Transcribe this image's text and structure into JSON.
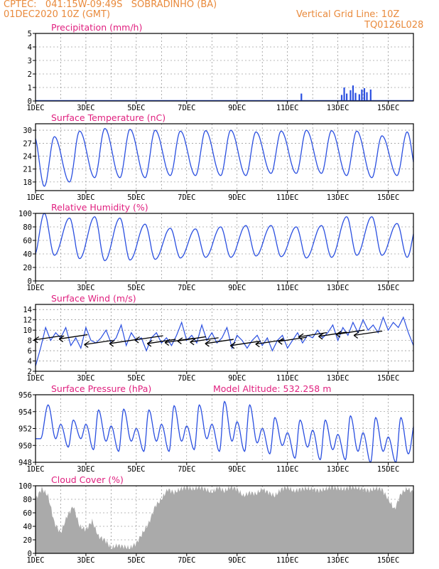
{
  "header": {
    "line1": "CPTEC:   041:15W-09:49S   SOBRADINHO (BA)",
    "line2": "01DEC2020 10Z (GMT)",
    "grid_note": "Vertical Grid Line: 10Z",
    "code": "TQ0126L028"
  },
  "colors": {
    "header": "#e98a3c",
    "title": "#e0207f",
    "line": "#2a4fe0",
    "cloud": "#aaaaaa",
    "arrow": "#000000"
  },
  "chart_data": [
    {
      "type": "bar",
      "title": "Precipitation (mm/h)",
      "ylim": [
        0,
        5
      ],
      "yticks": [
        0,
        1,
        2,
        3,
        4,
        5
      ],
      "xticks": [
        "1DEC",
        "3DEC",
        "5DEC",
        "7DEC",
        "9DEC",
        "11DEC",
        "13DEC",
        "15DEC"
      ],
      "events": [
        {
          "day": 11.55,
          "value": 0.55
        },
        {
          "day": 13.15,
          "value": 0.45
        },
        {
          "day": 13.25,
          "value": 1.0
        },
        {
          "day": 13.35,
          "value": 0.55
        },
        {
          "day": 13.5,
          "value": 0.8
        },
        {
          "day": 13.6,
          "value": 1.15
        },
        {
          "day": 13.7,
          "value": 0.6
        },
        {
          "day": 13.85,
          "value": 0.5
        },
        {
          "day": 13.95,
          "value": 0.85
        },
        {
          "day": 14.05,
          "value": 0.95
        },
        {
          "day": 14.15,
          "value": 0.65
        },
        {
          "day": 14.3,
          "value": 0.85
        }
      ]
    },
    {
      "type": "line",
      "title": "Surface Temperature (nC)",
      "ylim": [
        16,
        31.5
      ],
      "yticks": [
        18,
        21,
        24,
        27,
        30
      ],
      "xticks": [
        "1DEC",
        "3DEC",
        "5DEC",
        "7DEC",
        "9DEC",
        "11DEC",
        "13DEC",
        "15DEC"
      ],
      "max_days": [
        1.75,
        2.75,
        3.75,
        4.75,
        5.75,
        6.75,
        7.75,
        8.75,
        9.75,
        10.75,
        11.75,
        12.75,
        13.75,
        14.75,
        15.75
      ],
      "max_values": [
        28.5,
        29.8,
        30.4,
        30.2,
        30.0,
        29.8,
        29.9,
        30.0,
        29.6,
        29.8,
        30.0,
        29.9,
        29.8,
        28.7,
        29.6
      ],
      "min_days": [
        1.35,
        2.35,
        3.35,
        4.35,
        5.35,
        6.35,
        7.35,
        8.35,
        9.35,
        10.35,
        11.35,
        12.35,
        13.35,
        14.35,
        15.35
      ],
      "min_values": [
        17.0,
        18.0,
        19.0,
        19.0,
        19.0,
        19.5,
        19.5,
        19.5,
        19.5,
        20.0,
        20.0,
        20.0,
        19.5,
        19.0,
        19.5
      ]
    },
    {
      "type": "line",
      "title": "Relative Humidity (%)",
      "ylim": [
        0,
        100
      ],
      "yticks": [
        0,
        20,
        40,
        60,
        80,
        100
      ],
      "xticks": [
        "1DEC",
        "3DEC",
        "5DEC",
        "7DEC",
        "9DEC",
        "11DEC",
        "13DEC",
        "15DEC"
      ],
      "max_days": [
        1.35,
        2.35,
        3.35,
        4.35,
        5.35,
        6.35,
        7.35,
        8.35,
        9.35,
        10.35,
        11.35,
        12.35,
        13.35,
        14.35,
        15.35
      ],
      "max_values": [
        100,
        93,
        95,
        93,
        84,
        78,
        77,
        80,
        82,
        82,
        80,
        82,
        95,
        95,
        85
      ],
      "min_days": [
        1.75,
        2.75,
        3.75,
        4.75,
        5.75,
        6.75,
        7.75,
        8.75,
        9.75,
        10.75,
        11.75,
        12.75,
        13.75,
        14.75,
        15.75
      ],
      "min_values": [
        38,
        33,
        30,
        31,
        32,
        34,
        35,
        35,
        37,
        36,
        34,
        35,
        38,
        38,
        35
      ]
    },
    {
      "type": "line",
      "title": "Surface Wind (m/s)",
      "ylim": [
        2,
        15
      ],
      "yticks": [
        2,
        4,
        6,
        8,
        10,
        12,
        14
      ],
      "xticks": [
        "1DEC",
        "3DEC",
        "5DEC",
        "7DEC",
        "9DEC",
        "11DEC",
        "13DEC",
        "15DEC"
      ],
      "days": [
        1.0,
        1.2,
        1.4,
        1.6,
        1.8,
        2.0,
        2.2,
        2.4,
        2.6,
        2.8,
        3.0,
        3.2,
        3.4,
        3.6,
        3.8,
        4.0,
        4.2,
        4.4,
        4.6,
        4.8,
        5.0,
        5.2,
        5.4,
        5.6,
        5.8,
        6.0,
        6.2,
        6.4,
        6.6,
        6.8,
        7.0,
        7.2,
        7.4,
        7.6,
        7.8,
        8.0,
        8.2,
        8.4,
        8.6,
        8.8,
        9.0,
        9.2,
        9.4,
        9.6,
        9.8,
        10.0,
        10.2,
        10.4,
        10.6,
        10.8,
        11.0,
        11.2,
        11.4,
        11.6,
        11.8,
        12.0,
        12.2,
        12.4,
        12.6,
        12.8,
        13.0,
        13.2,
        13.4,
        13.6,
        13.8,
        14.0,
        14.2,
        14.4,
        14.6,
        14.8,
        15.0,
        15.2,
        15.4,
        15.6,
        15.8,
        16.0
      ],
      "values": [
        3.0,
        6.5,
        10.5,
        8.0,
        9.5,
        8.5,
        10.5,
        7.0,
        8.5,
        6.5,
        10.5,
        8.0,
        7.5,
        8.5,
        10.0,
        7.5,
        8.5,
        11.0,
        7.0,
        9.5,
        8.0,
        8.5,
        6.0,
        8.5,
        9.5,
        7.5,
        8.5,
        7.0,
        9.0,
        11.5,
        8.0,
        9.0,
        7.5,
        11.0,
        8.0,
        9.5,
        7.5,
        8.5,
        10.5,
        6.5,
        9.0,
        8.0,
        6.5,
        8.0,
        9.0,
        7.0,
        8.5,
        6.0,
        8.0,
        9.0,
        6.5,
        8.0,
        9.5,
        7.5,
        9.0,
        8.5,
        10.0,
        8.5,
        9.5,
        11.0,
        8.0,
        10.5,
        9.0,
        11.5,
        9.5,
        12.0,
        10.0,
        11.0,
        9.5,
        12.5,
        10.0,
        11.5,
        10.5,
        12.5,
        9.5,
        7.0
      ],
      "arrow_days": [
        1.5,
        2.5,
        3.5,
        4.5,
        5.5,
        6.0,
        6.7,
        7.2,
        7.7,
        8.3,
        9.3,
        10.3,
        11.2,
        12.0,
        12.8,
        13.5,
        14.2
      ],
      "arrow_values": [
        8.5,
        8.7,
        7.6,
        7.8,
        8.5,
        7.8,
        8.0,
        8.3,
        8.1,
        7.8,
        7.4,
        7.7,
        8.2,
        9.1,
        9.2,
        9.6,
        9.4
      ]
    },
    {
      "type": "line",
      "title": "Surface Pressure (hPa)",
      "annotation": "Model Altitude: 532.258  m",
      "ylim": [
        948,
        956
      ],
      "yticks": [
        948,
        950,
        952,
        954,
        956
      ],
      "xticks": [
        "1DEC",
        "3DEC",
        "5DEC",
        "7DEC",
        "9DEC",
        "11DEC",
        "13DEC",
        "15DEC"
      ],
      "max_days": [
        1.5,
        2.0,
        2.5,
        3.0,
        3.5,
        4.0,
        4.5,
        5.0,
        5.5,
        6.0,
        6.5,
        7.0,
        7.5,
        8.0,
        8.5,
        9.0,
        9.5,
        10.0,
        10.5,
        11.0,
        11.5,
        12.0,
        12.5,
        13.0,
        13.5,
        14.0,
        14.5,
        15.0,
        15.5
      ],
      "max_values": [
        954.8,
        952.5,
        953.0,
        952.5,
        954.2,
        952.3,
        954.3,
        952.0,
        954.2,
        952.5,
        954.7,
        952.3,
        954.8,
        952.5,
        955.2,
        952.8,
        954.8,
        952.0,
        953.3,
        951.5,
        953.0,
        951.8,
        953.0,
        951.3,
        953.5,
        951.5,
        953.3,
        951.0,
        953.3
      ],
      "min_days": [
        1.8,
        2.3,
        2.8,
        3.3,
        3.8,
        4.3,
        4.8,
        5.3,
        5.8,
        6.3,
        6.8,
        7.3,
        7.8,
        8.3,
        8.8,
        9.3,
        9.8,
        10.3,
        10.8,
        11.3,
        11.8,
        12.3,
        12.8,
        13.3,
        13.8,
        14.3,
        14.8,
        15.3,
        15.8
      ],
      "min_values": [
        950.8,
        949.8,
        950.8,
        949.5,
        950.5,
        949.3,
        950.5,
        949.3,
        950.5,
        949.3,
        950.5,
        949.5,
        950.8,
        949.3,
        950.5,
        949.3,
        950.3,
        949.0,
        950.0,
        948.5,
        949.8,
        948.3,
        949.5,
        948.3,
        949.3,
        948.0,
        949.3,
        948.0,
        949.0
      ]
    },
    {
      "type": "area",
      "title": "Cloud Cover (%)",
      "ylim": [
        0,
        100
      ],
      "yticks": [
        0,
        20,
        40,
        60,
        80,
        100
      ],
      "xticks": [
        "1DEC",
        "3DEC",
        "5DEC",
        "7DEC",
        "9DEC",
        "11DEC",
        "13DEC",
        "15DEC"
      ],
      "days": [
        1.0,
        1.25,
        1.5,
        1.75,
        2.0,
        2.25,
        2.5,
        2.75,
        3.0,
        3.25,
        3.5,
        3.75,
        4.0,
        4.25,
        4.5,
        4.75,
        5.0,
        5.25,
        5.5,
        5.75,
        6.0,
        6.25,
        6.5,
        6.75,
        7.0,
        7.25,
        7.5,
        7.75,
        8.0,
        8.25,
        8.5,
        8.75,
        9.0,
        9.25,
        9.5,
        9.75,
        10.0,
        10.25,
        10.5,
        10.75,
        11.0,
        11.25,
        11.5,
        11.75,
        12.0,
        12.25,
        12.5,
        12.75,
        13.0,
        13.25,
        13.5,
        13.75,
        14.0,
        14.25,
        14.5,
        14.75,
        15.0,
        15.25,
        15.5,
        15.75,
        16.0
      ],
      "values": [
        80,
        96,
        85,
        45,
        30,
        55,
        70,
        40,
        35,
        48,
        25,
        20,
        8,
        12,
        10,
        8,
        15,
        30,
        45,
        70,
        80,
        95,
        90,
        95,
        98,
        95,
        98,
        95,
        90,
        98,
        92,
        98,
        95,
        85,
        90,
        88,
        95,
        90,
        85,
        95,
        98,
        92,
        95,
        96,
        95,
        93,
        95,
        98,
        96,
        95,
        98,
        97,
        95,
        93,
        96,
        95,
        80,
        65,
        88,
        96,
        90
      ]
    }
  ]
}
